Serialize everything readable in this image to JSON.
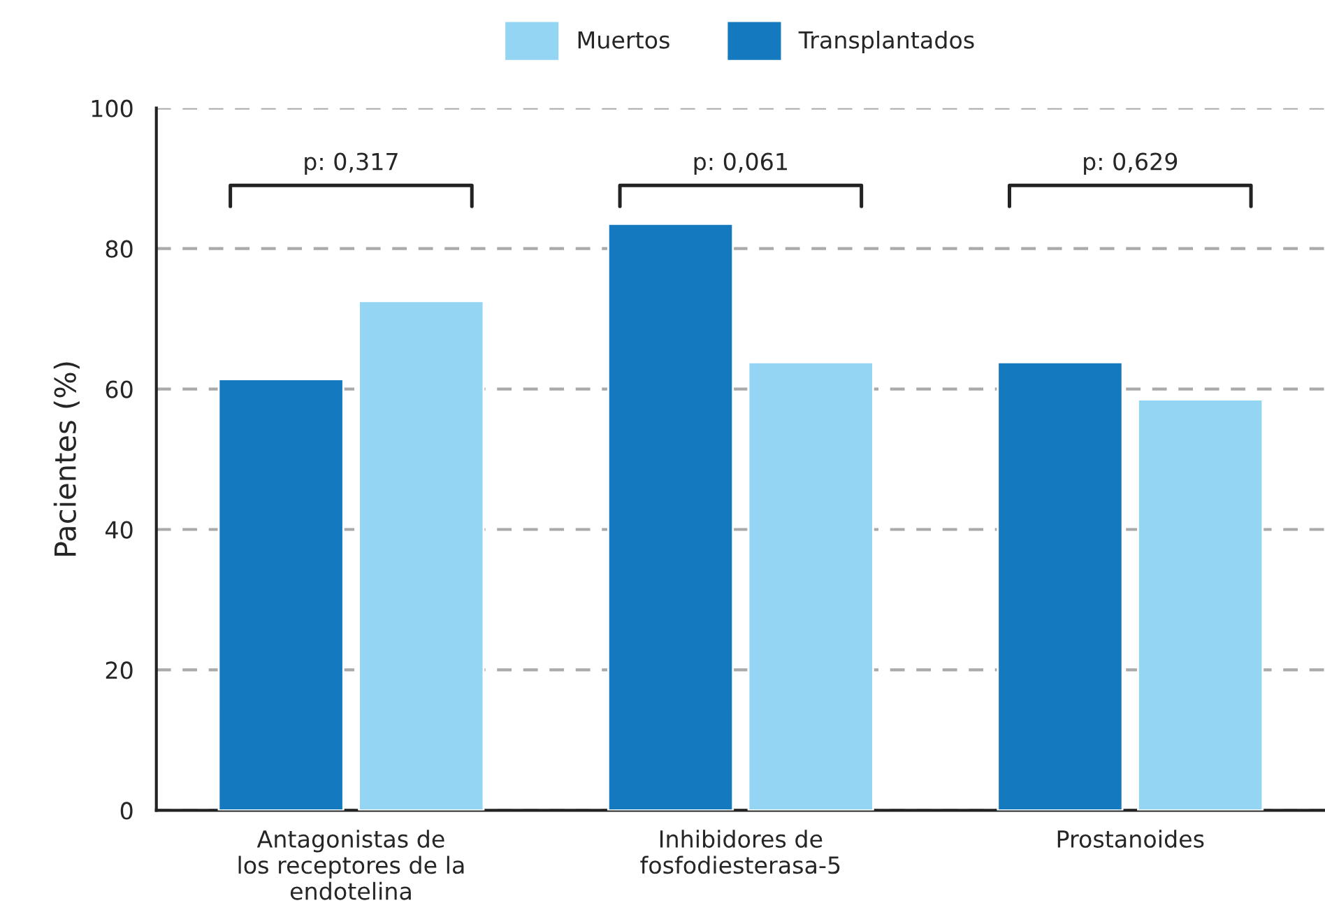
{
  "chart_data": {
    "type": "bar",
    "ylabel": "Pacientes (%)",
    "categories": [
      "Antagonistas de\nlos receptores de la\nendotelina",
      "Inhibidores de\nfosfodiesterasa-5",
      "Prostanoides"
    ],
    "series": [
      {
        "name": "Transplantados",
        "color": "#1479be",
        "values": [
          61.4,
          83.5,
          63.8
        ]
      },
      {
        "name": "Muertos",
        "color": "#94d5f4",
        "values": [
          72.5,
          63.8,
          58.5
        ]
      }
    ],
    "ylim": [
      0,
      100
    ],
    "yticks": [
      0,
      20,
      40,
      60,
      80,
      100
    ],
    "grid": "y",
    "legend": "top",
    "annotations": [
      "p: 0,317",
      "p: 0,061",
      "p: 0,629"
    ]
  }
}
